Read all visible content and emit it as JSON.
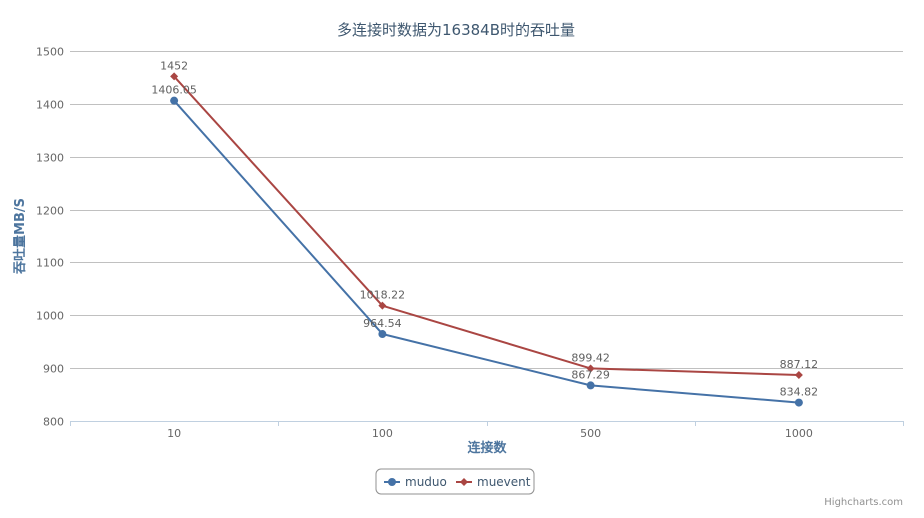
{
  "chart_data": {
    "type": "line",
    "title": "多连接时数据为16384B时的吞吐量",
    "xlabel": "连接数",
    "ylabel": "吞吐量MB/S",
    "categories": [
      "10",
      "100",
      "500",
      "1000"
    ],
    "ylim": [
      800,
      1500
    ],
    "yticks": [
      800,
      900,
      1000,
      1100,
      1200,
      1300,
      1400,
      1500
    ],
    "grid": true,
    "legend_position": "bottom-center",
    "series": [
      {
        "name": "muduo",
        "values": [
          1406.05,
          964.54,
          867.29,
          834.82
        ],
        "color": "#4572a7",
        "marker": "circle"
      },
      {
        "name": "muevent",
        "values": [
          1452,
          1018.22,
          899.42,
          887.12
        ],
        "color": "#aa4643",
        "marker": "diamond"
      }
    ]
  },
  "credits": "Highcharts.com"
}
